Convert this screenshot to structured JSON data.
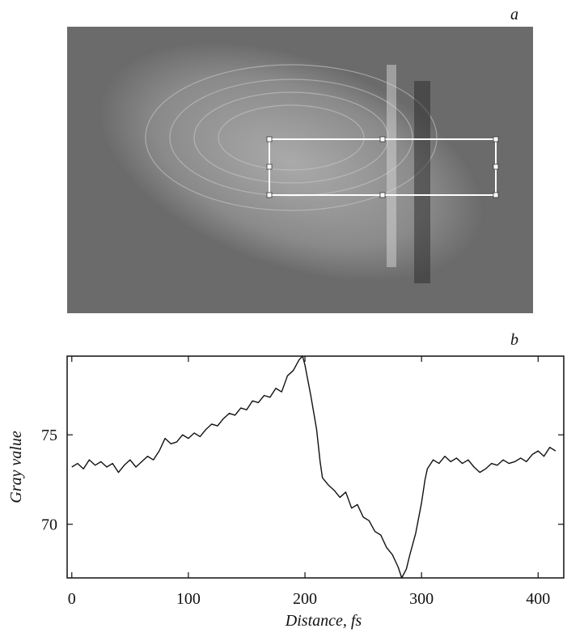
{
  "panel_labels": [
    "a",
    "b"
  ],
  "chart_data": {
    "type": "line",
    "x_label": "Distance, fs",
    "y_label": "Gray value",
    "x": [
      0,
      5,
      10,
      15,
      20,
      25,
      30,
      35,
      40,
      45,
      50,
      55,
      60,
      65,
      70,
      75,
      80,
      85,
      90,
      95,
      100,
      105,
      110,
      115,
      120,
      125,
      130,
      135,
      140,
      145,
      150,
      155,
      160,
      165,
      170,
      175,
      180,
      185,
      190,
      195,
      198,
      200,
      205,
      210,
      213,
      215,
      220,
      225,
      230,
      235,
      240,
      245,
      250,
      255,
      260,
      265,
      270,
      275,
      280,
      283,
      287,
      290,
      295,
      300,
      303,
      305,
      310,
      315,
      320,
      325,
      330,
      335,
      340,
      345,
      350,
      355,
      360,
      365,
      370,
      375,
      380,
      385,
      390,
      395,
      400,
      405,
      410,
      415
    ],
    "values": [
      73.2,
      73.4,
      73.1,
      73.6,
      73.3,
      73.5,
      73.2,
      73.4,
      72.9,
      73.3,
      73.6,
      73.2,
      73.5,
      73.8,
      73.6,
      74.1,
      74.8,
      74.5,
      74.6,
      75.0,
      74.8,
      75.1,
      74.9,
      75.3,
      75.6,
      75.5,
      75.9,
      76.2,
      76.1,
      76.5,
      76.4,
      76.9,
      76.8,
      77.2,
      77.1,
      77.6,
      77.4,
      78.3,
      78.6,
      79.2,
      79.4,
      78.9,
      77.2,
      75.3,
      73.5,
      72.6,
      72.2,
      71.9,
      71.5,
      71.8,
      70.9,
      71.1,
      70.4,
      70.2,
      69.6,
      69.4,
      68.7,
      68.3,
      67.6,
      67.0,
      67.5,
      68.3,
      69.5,
      71.2,
      72.5,
      73.1,
      73.6,
      73.4,
      73.8,
      73.5,
      73.7,
      73.4,
      73.6,
      73.2,
      72.9,
      73.1,
      73.4,
      73.3,
      73.6,
      73.4,
      73.5,
      73.7,
      73.5,
      73.9,
      74.1,
      73.8,
      74.3,
      74.1
    ],
    "color": "#111111",
    "xlim": [
      -4,
      422
    ],
    "ylim": [
      67,
      79.4
    ],
    "xticks": [
      0,
      100,
      200,
      300,
      400
    ],
    "yticks": [
      70,
      75
    ]
  }
}
